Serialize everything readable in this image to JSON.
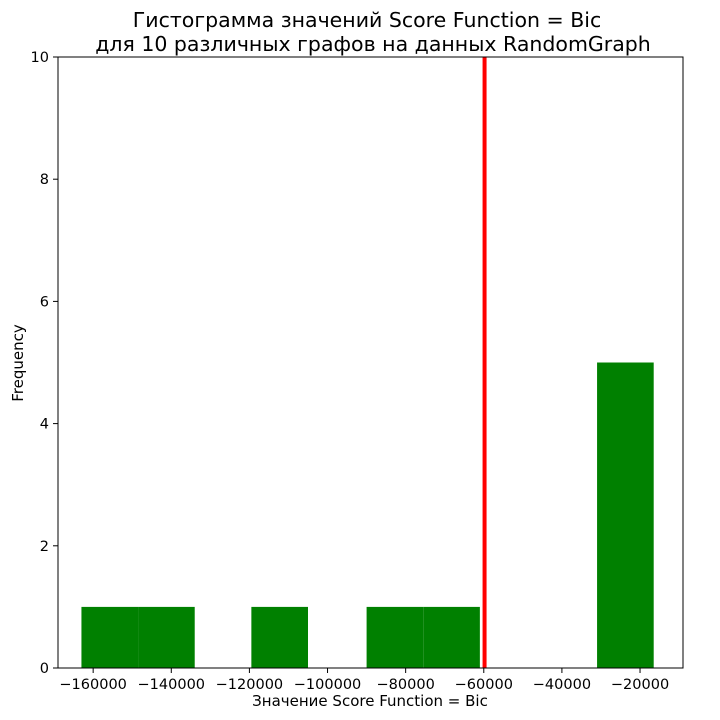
{
  "chart_data": {
    "type": "bar",
    "title_lines": [
      "Гистограмма значений Score Function = Bic",
      "для 10 различных графов на данных RandomGraph"
    ],
    "xlabel": "Значение Score Function = Bic",
    "ylabel": "Frequency",
    "xlim": [
      -169000,
      -9000
    ],
    "ylim": [
      0,
      10
    ],
    "x_ticks": [
      -160000,
      -140000,
      -120000,
      -100000,
      -80000,
      -60000,
      -40000,
      -20000
    ],
    "x_tick_labels": [
      "−160000",
      "−140000",
      "−120000",
      "−100000",
      "−80000",
      "−60000",
      "−40000",
      "−20000"
    ],
    "y_ticks": [
      0,
      2,
      4,
      6,
      8,
      10
    ],
    "y_tick_labels": [
      "0",
      "2",
      "4",
      "6",
      "8",
      "10"
    ],
    "bins": [
      {
        "start": -163000,
        "end": -148500,
        "count": 1
      },
      {
        "start": -148500,
        "end": -134000,
        "count": 1
      },
      {
        "start": -119500,
        "end": -105000,
        "count": 1
      },
      {
        "start": -90000,
        "end": -75500,
        "count": 1
      },
      {
        "start": -75500,
        "end": -61000,
        "count": 1
      },
      {
        "start": -31000,
        "end": -16500,
        "count": 5
      }
    ],
    "bar_color": "#008000",
    "reference_line": {
      "x": -59800,
      "color": "#ff0000"
    },
    "grid": false
  }
}
